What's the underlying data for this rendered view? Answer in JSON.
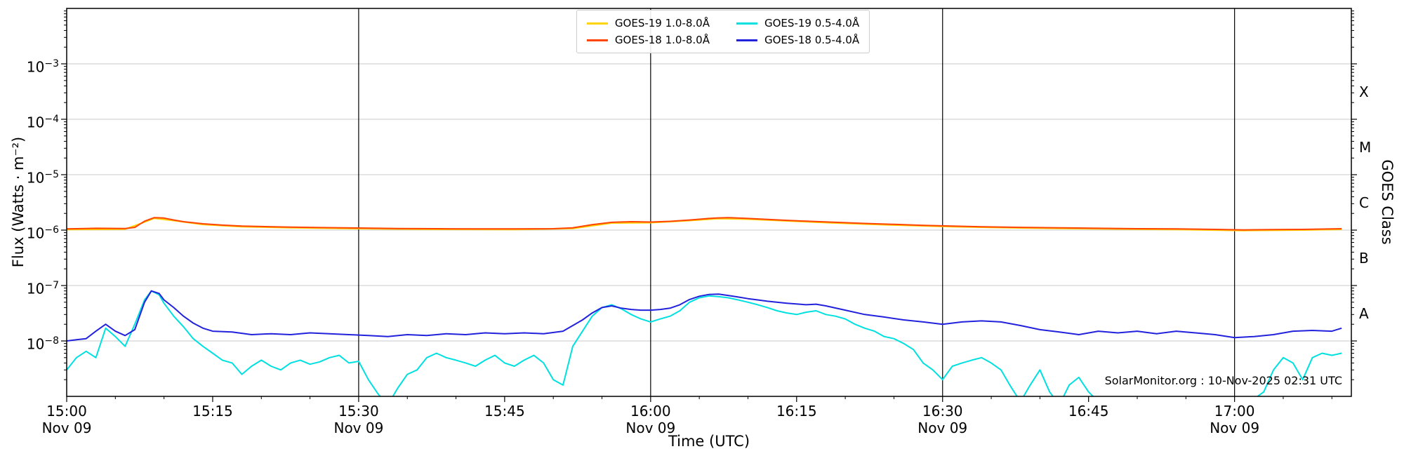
{
  "watermark": "SolarMonitor.org : 10-Nov-2025 02:31 UTC",
  "chart_data": {
    "type": "line",
    "title": "",
    "xlabel": "Time (UTC)",
    "ylabel": "Flux (Watts · m⁻²)",
    "right_axis_label": "GOES Class",
    "y_scale": "log",
    "ylim_log10": [
      -9,
      -2
    ],
    "xlim": [
      0,
      132
    ],
    "x_unit": "minutes after 15:00 UTC, Nov 09",
    "grid": "light horizontal gridlines at each decade",
    "legend_position": "upper center",
    "x_ticks": [
      {
        "t": 0,
        "label": "15:00",
        "sub": "Nov 09"
      },
      {
        "t": 15,
        "label": "15:15"
      },
      {
        "t": 30,
        "label": "15:30",
        "sub": "Nov 09"
      },
      {
        "t": 45,
        "label": "15:45"
      },
      {
        "t": 60,
        "label": "16:00",
        "sub": "Nov 09"
      },
      {
        "t": 75,
        "label": "16:15"
      },
      {
        "t": 90,
        "label": "16:30",
        "sub": "Nov 09"
      },
      {
        "t": 105,
        "label": "16:45"
      },
      {
        "t": 120,
        "label": "17:00",
        "sub": "Nov 09"
      }
    ],
    "y_ticks_log10": [
      -3,
      -4,
      -5,
      -6,
      -7,
      -8
    ],
    "right_axis_classes": [
      {
        "label": "X",
        "log10_center": -3.5
      },
      {
        "label": "M",
        "log10_center": -4.5
      },
      {
        "label": "C",
        "log10_center": -5.5
      },
      {
        "label": "B",
        "log10_center": -6.5
      },
      {
        "label": "A",
        "log10_center": -7.5
      }
    ],
    "vlines_t": [
      30,
      60,
      90,
      120
    ],
    "series_note": "points are [minutes after 15:00 UTC, flux value]; flux in W/m^2 = value x scale",
    "series": [
      {
        "key": "goes19-long",
        "name": "GOES-19 1.0-8.0Å",
        "color": "#ffd400",
        "scale": 1e-06,
        "points": [
          [
            0,
            1.02
          ],
          [
            6,
            1.04
          ],
          [
            8,
            1.4
          ],
          [
            9,
            1.63
          ],
          [
            11,
            1.48
          ],
          [
            14,
            1.26
          ],
          [
            18,
            1.15
          ],
          [
            23,
            1.1
          ],
          [
            30,
            1.06
          ],
          [
            38,
            1.03
          ],
          [
            46,
            1.02
          ],
          [
            52,
            1.07
          ],
          [
            56,
            1.34
          ],
          [
            60,
            1.36
          ],
          [
            64,
            1.48
          ],
          [
            67,
            1.61
          ],
          [
            70,
            1.57
          ],
          [
            74,
            1.46
          ],
          [
            79,
            1.34
          ],
          [
            85,
            1.23
          ],
          [
            91,
            1.15
          ],
          [
            98,
            1.09
          ],
          [
            106,
            1.05
          ],
          [
            114,
            1.02
          ],
          [
            121,
            0.98
          ],
          [
            127,
            1.0
          ],
          [
            131,
            1.03
          ]
        ]
      },
      {
        "key": "goes18-long",
        "name": "GOES-18 1.0-8.0Å",
        "color": "#ff4400",
        "scale": 1e-06,
        "points": [
          [
            0,
            1.05
          ],
          [
            3,
            1.08
          ],
          [
            6,
            1.07
          ],
          [
            7,
            1.12
          ],
          [
            8,
            1.45
          ],
          [
            9,
            1.68
          ],
          [
            10,
            1.65
          ],
          [
            11,
            1.52
          ],
          [
            12,
            1.42
          ],
          [
            14,
            1.3
          ],
          [
            16,
            1.23
          ],
          [
            18,
            1.18
          ],
          [
            20,
            1.16
          ],
          [
            23,
            1.13
          ],
          [
            26,
            1.11
          ],
          [
            30,
            1.09
          ],
          [
            34,
            1.07
          ],
          [
            38,
            1.06
          ],
          [
            42,
            1.05
          ],
          [
            46,
            1.05
          ],
          [
            50,
            1.06
          ],
          [
            52,
            1.1
          ],
          [
            54,
            1.25
          ],
          [
            56,
            1.38
          ],
          [
            58,
            1.42
          ],
          [
            60,
            1.4
          ],
          [
            62,
            1.44
          ],
          [
            64,
            1.52
          ],
          [
            66,
            1.62
          ],
          [
            67,
            1.66
          ],
          [
            68,
            1.68
          ],
          [
            70,
            1.62
          ],
          [
            72,
            1.56
          ],
          [
            74,
            1.5
          ],
          [
            76,
            1.45
          ],
          [
            79,
            1.38
          ],
          [
            82,
            1.32
          ],
          [
            85,
            1.27
          ],
          [
            88,
            1.22
          ],
          [
            91,
            1.18
          ],
          [
            94,
            1.15
          ],
          [
            98,
            1.12
          ],
          [
            102,
            1.1
          ],
          [
            106,
            1.08
          ],
          [
            110,
            1.06
          ],
          [
            114,
            1.05
          ],
          [
            118,
            1.03
          ],
          [
            121,
            1.01
          ],
          [
            124,
            1.02
          ],
          [
            127,
            1.03
          ],
          [
            131,
            1.06
          ]
        ]
      },
      {
        "key": "goes19-short",
        "name": "GOES-19 0.5-4.0Å",
        "color": "#00e0e0",
        "scale": 1e-09,
        "points": [
          [
            0,
            3
          ],
          [
            1,
            5
          ],
          [
            2,
            6.5
          ],
          [
            3,
            5
          ],
          [
            4,
            17
          ],
          [
            5,
            12
          ],
          [
            6,
            8
          ],
          [
            7,
            20
          ],
          [
            8,
            55
          ],
          [
            8.7,
            80
          ],
          [
            9.5,
            68
          ],
          [
            10,
            48
          ],
          [
            11,
            28
          ],
          [
            12,
            18
          ],
          [
            13,
            11
          ],
          [
            14,
            8
          ],
          [
            15,
            6
          ],
          [
            16,
            4.5
          ],
          [
            17,
            4
          ],
          [
            18,
            2.5
          ],
          [
            19,
            3.5
          ],
          [
            20,
            4.5
          ],
          [
            21,
            3.5
          ],
          [
            22,
            3
          ],
          [
            23,
            4
          ],
          [
            24,
            4.5
          ],
          [
            25,
            3.8
          ],
          [
            26,
            4.2
          ],
          [
            27,
            5
          ],
          [
            28,
            5.5
          ],
          [
            29,
            4
          ],
          [
            30,
            4.3
          ],
          [
            31,
            2
          ],
          [
            32,
            1.1
          ],
          [
            33,
            0.7
          ],
          [
            34,
            1.4
          ],
          [
            35,
            2.5
          ],
          [
            36,
            3
          ],
          [
            37,
            5
          ],
          [
            38,
            6
          ],
          [
            39,
            5
          ],
          [
            40,
            4.5
          ],
          [
            41,
            4
          ],
          [
            42,
            3.5
          ],
          [
            43,
            4.5
          ],
          [
            44,
            5.5
          ],
          [
            45,
            4
          ],
          [
            46,
            3.5
          ],
          [
            47,
            4.5
          ],
          [
            48,
            5.5
          ],
          [
            49,
            4
          ],
          [
            50,
            2
          ],
          [
            51,
            1.6
          ],
          [
            52,
            8
          ],
          [
            53,
            15
          ],
          [
            54,
            28
          ],
          [
            55,
            40
          ],
          [
            56,
            45
          ],
          [
            57,
            38
          ],
          [
            58,
            30
          ],
          [
            59,
            25
          ],
          [
            60,
            22
          ],
          [
            61,
            25
          ],
          [
            62,
            28
          ],
          [
            63,
            35
          ],
          [
            64,
            50
          ],
          [
            65,
            60
          ],
          [
            66,
            65
          ],
          [
            67,
            63
          ],
          [
            68,
            60
          ],
          [
            69,
            55
          ],
          [
            70,
            50
          ],
          [
            71,
            45
          ],
          [
            72,
            40
          ],
          [
            73,
            35
          ],
          [
            74,
            32
          ],
          [
            75,
            30
          ],
          [
            76,
            33
          ],
          [
            77,
            35
          ],
          [
            78,
            30
          ],
          [
            79,
            28
          ],
          [
            80,
            25
          ],
          [
            81,
            20
          ],
          [
            82,
            17
          ],
          [
            83,
            15
          ],
          [
            84,
            12
          ],
          [
            85,
            11
          ],
          [
            86,
            9
          ],
          [
            87,
            7
          ],
          [
            88,
            4
          ],
          [
            89,
            3
          ],
          [
            90,
            2
          ],
          [
            91,
            3.5
          ],
          [
            92,
            4
          ],
          [
            93,
            4.5
          ],
          [
            94,
            5
          ],
          [
            95,
            4
          ],
          [
            96,
            3
          ],
          [
            97,
            1.5
          ],
          [
            98,
            0.8
          ],
          [
            99,
            1.6
          ],
          [
            100,
            3
          ],
          [
            101,
            1.2
          ],
          [
            102,
            0.7
          ],
          [
            103,
            1.6
          ],
          [
            104,
            2.2
          ],
          [
            105,
            1.2
          ],
          [
            106,
            0.8
          ],
          [
            107,
            0.7
          ],
          [
            108,
            0.9
          ],
          [
            110,
            0.8
          ],
          [
            112,
            0.9
          ],
          [
            114,
            0.7
          ],
          [
            116,
            0.8
          ],
          [
            118,
            0.8
          ],
          [
            120,
            0.7
          ],
          [
            122,
            0.9
          ],
          [
            123,
            1.2
          ],
          [
            124,
            3
          ],
          [
            125,
            5
          ],
          [
            126,
            4
          ],
          [
            127,
            2
          ],
          [
            128,
            5
          ],
          [
            129,
            6
          ],
          [
            130,
            5.5
          ],
          [
            131,
            6
          ]
        ]
      },
      {
        "key": "goes18-short",
        "name": "GOES-18 0.5-4.0Å",
        "color": "#2222dd",
        "scale": 1e-08,
        "points": [
          [
            0,
            1.0
          ],
          [
            1,
            1.05
          ],
          [
            2,
            1.1
          ],
          [
            3,
            1.5
          ],
          [
            4,
            2.0
          ],
          [
            5,
            1.5
          ],
          [
            6,
            1.25
          ],
          [
            7,
            1.6
          ],
          [
            8,
            5.0
          ],
          [
            8.7,
            8.0
          ],
          [
            9.5,
            7.2
          ],
          [
            10,
            5.5
          ],
          [
            11,
            4.0
          ],
          [
            12,
            2.8
          ],
          [
            13,
            2.1
          ],
          [
            14,
            1.7
          ],
          [
            15,
            1.5
          ],
          [
            17,
            1.45
          ],
          [
            19,
            1.3
          ],
          [
            21,
            1.35
          ],
          [
            23,
            1.3
          ],
          [
            25,
            1.4
          ],
          [
            27,
            1.35
          ],
          [
            29,
            1.3
          ],
          [
            31,
            1.25
          ],
          [
            33,
            1.2
          ],
          [
            35,
            1.3
          ],
          [
            37,
            1.25
          ],
          [
            39,
            1.35
          ],
          [
            41,
            1.3
          ],
          [
            43,
            1.4
          ],
          [
            45,
            1.35
          ],
          [
            47,
            1.4
          ],
          [
            49,
            1.35
          ],
          [
            51,
            1.5
          ],
          [
            53,
            2.4
          ],
          [
            54,
            3.2
          ],
          [
            55,
            4.0
          ],
          [
            56,
            4.3
          ],
          [
            57,
            3.9
          ],
          [
            58,
            3.7
          ],
          [
            59,
            3.6
          ],
          [
            60,
            3.6
          ],
          [
            61,
            3.7
          ],
          [
            62,
            3.9
          ],
          [
            63,
            4.5
          ],
          [
            64,
            5.6
          ],
          [
            65,
            6.4
          ],
          [
            66,
            6.9
          ],
          [
            67,
            7.0
          ],
          [
            68,
            6.6
          ],
          [
            69,
            6.2
          ],
          [
            70,
            5.8
          ],
          [
            71,
            5.5
          ],
          [
            72,
            5.2
          ],
          [
            74,
            4.8
          ],
          [
            76,
            4.5
          ],
          [
            77,
            4.6
          ],
          [
            78,
            4.3
          ],
          [
            80,
            3.6
          ],
          [
            82,
            3.0
          ],
          [
            84,
            2.7
          ],
          [
            86,
            2.4
          ],
          [
            88,
            2.2
          ],
          [
            90,
            2.0
          ],
          [
            92,
            2.2
          ],
          [
            94,
            2.3
          ],
          [
            96,
            2.2
          ],
          [
            98,
            1.9
          ],
          [
            100,
            1.6
          ],
          [
            102,
            1.45
          ],
          [
            104,
            1.3
          ],
          [
            106,
            1.5
          ],
          [
            108,
            1.4
          ],
          [
            110,
            1.5
          ],
          [
            112,
            1.35
          ],
          [
            114,
            1.5
          ],
          [
            116,
            1.4
          ],
          [
            118,
            1.3
          ],
          [
            120,
            1.15
          ],
          [
            122,
            1.2
          ],
          [
            124,
            1.3
          ],
          [
            126,
            1.5
          ],
          [
            128,
            1.55
          ],
          [
            130,
            1.5
          ],
          [
            131,
            1.7
          ]
        ]
      }
    ]
  }
}
